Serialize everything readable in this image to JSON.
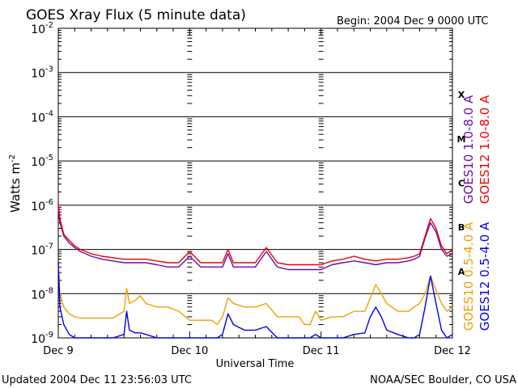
{
  "chart_data": {
    "type": "line",
    "title": "GOES Xray Flux (5 minute data)",
    "subtitle": "Begin:  2004 Dec 9 0000 UTC",
    "xlabel": "Universal Time",
    "ylabel_base": "Watts m",
    "ylabel_exp": "-2",
    "x_ticks": [
      "Dec 9",
      "Dec 10",
      "Dec 11",
      "Dec 12"
    ],
    "x_range_hours": [
      0,
      72
    ],
    "y_scale": "log",
    "y_range": [
      1e-09,
      0.01
    ],
    "y_ticks": [
      {
        "base": "10",
        "exp": "-2"
      },
      {
        "base": "10",
        "exp": "-3"
      },
      {
        "base": "10",
        "exp": "-4"
      },
      {
        "base": "10",
        "exp": "-5"
      },
      {
        "base": "10",
        "exp": "-6"
      },
      {
        "base": "10",
        "exp": "-7"
      },
      {
        "base": "10",
        "exp": "-8"
      },
      {
        "base": "10",
        "exp": "-9"
      }
    ],
    "flare_classes": [
      "X",
      "M",
      "C",
      "B",
      "A"
    ],
    "grid": "horizontal at each decade",
    "series": [
      {
        "name": "GOES12 1.0-8.0 A",
        "color": "#ee0000",
        "x": [
          0,
          0.3,
          1,
          2,
          3,
          4,
          5,
          6,
          8,
          10,
          12,
          14,
          16,
          18,
          20,
          22,
          24,
          26,
          28,
          30,
          31,
          32,
          34,
          36,
          38,
          40,
          42,
          44,
          46,
          48,
          50,
          52,
          54,
          56,
          58,
          60,
          62,
          64,
          65,
          66,
          67,
          68,
          69,
          70,
          71,
          72
        ],
        "values": [
          1.1e-06,
          5e-07,
          2.2e-07,
          1.6e-07,
          1.2e-07,
          1e-07,
          9e-08,
          8e-08,
          7e-08,
          6.5e-08,
          6e-08,
          6e-08,
          6e-08,
          5.5e-08,
          5e-08,
          5e-08,
          9e-08,
          5e-08,
          5e-08,
          5e-08,
          1e-07,
          5e-08,
          5e-08,
          5e-08,
          1.1e-07,
          5e-08,
          4.5e-08,
          4.5e-08,
          4.5e-08,
          4.5e-08,
          5.5e-08,
          6e-08,
          7e-08,
          6e-08,
          5.5e-08,
          6e-08,
          6e-08,
          6.5e-08,
          7e-08,
          8e-08,
          2e-07,
          5e-07,
          3e-07,
          1.2e-07,
          8e-08,
          1e-07
        ]
      },
      {
        "name": "GOES10 1.0-8.0 A",
        "color": "#6a0dad",
        "x": [
          0,
          0.3,
          1,
          2,
          3,
          4,
          5,
          6,
          8,
          10,
          12,
          14,
          16,
          18,
          20,
          22,
          24,
          26,
          28,
          30,
          31,
          32,
          34,
          36,
          38,
          40,
          42,
          44,
          46,
          48,
          50,
          52,
          54,
          56,
          58,
          60,
          62,
          64,
          65,
          66,
          67,
          68,
          69,
          70,
          71,
          72
        ],
        "values": [
          9e-07,
          4e-07,
          2e-07,
          1.4e-07,
          1.1e-07,
          9e-08,
          8e-08,
          7e-08,
          6e-08,
          5.5e-08,
          5e-08,
          5e-08,
          5e-08,
          4.5e-08,
          4e-08,
          4e-08,
          7e-08,
          4e-08,
          4e-08,
          4e-08,
          8e-08,
          4e-08,
          4e-08,
          4e-08,
          9e-08,
          4e-08,
          3.5e-08,
          3.5e-08,
          3.5e-08,
          3.5e-08,
          4.5e-08,
          5e-08,
          5.5e-08,
          5e-08,
          4.5e-08,
          5e-08,
          5e-08,
          5.5e-08,
          6e-08,
          7e-08,
          1.8e-07,
          4e-07,
          2.5e-07,
          1e-07,
          7e-08,
          8e-08
        ]
      },
      {
        "name": "GOES10 0.5-4.0 A",
        "color": "#f0a000",
        "x": [
          0,
          0.3,
          1,
          2,
          3,
          4,
          6,
          8,
          10,
          12,
          12.5,
          13,
          14,
          15,
          16,
          18,
          20,
          22,
          24,
          26,
          28,
          29,
          30,
          31,
          32,
          34,
          36,
          38,
          40,
          42,
          44,
          45,
          46,
          47,
          48,
          50,
          52,
          54,
          56,
          57,
          58,
          59,
          60,
          62,
          64,
          65,
          66,
          67,
          68,
          69,
          70,
          71,
          72
        ],
        "values": [
          5e-08,
          1e-08,
          5e-09,
          3.5e-09,
          3e-09,
          2.8e-09,
          2.8e-09,
          2.8e-09,
          2.8e-09,
          4e-09,
          1.3e-08,
          6e-09,
          7e-09,
          9e-09,
          6e-09,
          5e-09,
          5e-09,
          4e-09,
          2.5e-09,
          2.5e-09,
          2.5e-09,
          2e-09,
          3e-09,
          8e-09,
          6e-09,
          5e-09,
          5e-09,
          6e-09,
          3e-09,
          3e-09,
          3e-09,
          2e-09,
          2e-09,
          4e-09,
          2.5e-09,
          3e-09,
          3e-09,
          4e-09,
          4e-09,
          8e-09,
          1.6e-08,
          1e-08,
          6e-09,
          4e-09,
          4e-09,
          5e-09,
          6e-09,
          1e-08,
          2.5e-08,
          1.2e-08,
          6e-09,
          4e-09,
          5e-09
        ]
      },
      {
        "name": "GOES12 0.5-4.0 A",
        "color": "#0000ee",
        "x": [
          0,
          0.3,
          1,
          2,
          3,
          4,
          6,
          8,
          10,
          12,
          12.5,
          13,
          14,
          15,
          16,
          18,
          20,
          22,
          24,
          26,
          28,
          29,
          30,
          31,
          32,
          34,
          36,
          38,
          40,
          42,
          44,
          45,
          46,
          47,
          48,
          50,
          52,
          54,
          56,
          57,
          58,
          59,
          60,
          62,
          64,
          65,
          66,
          67,
          68,
          69,
          70,
          71,
          72
        ],
        "values": [
          5e-08,
          5e-09,
          2e-09,
          1.2e-09,
          1e-09,
          1e-09,
          1e-09,
          1e-09,
          1e-09,
          1.2e-09,
          4e-09,
          1.5e-09,
          1.3e-09,
          1.3e-09,
          1.2e-09,
          1e-09,
          1e-09,
          1e-09,
          1e-09,
          1e-09,
          1e-09,
          1e-09,
          1.2e-09,
          3.5e-09,
          2e-09,
          1.5e-09,
          1.5e-09,
          1.8e-09,
          1e-09,
          1e-09,
          1e-09,
          1e-09,
          1e-09,
          1.2e-09,
          1e-09,
          1e-09,
          1e-09,
          1.2e-09,
          1.3e-09,
          3e-09,
          5e-09,
          3e-09,
          1.5e-09,
          1.2e-09,
          1e-09,
          1e-09,
          1.2e-09,
          5e-09,
          2.5e-08,
          6e-09,
          1.5e-09,
          1e-09,
          1.2e-09
        ]
      }
    ]
  },
  "footer": {
    "updated": "Updated 2004 Dec 11 23:56:03 UTC",
    "source": "NOAA/SEC Boulder, CO USA"
  }
}
